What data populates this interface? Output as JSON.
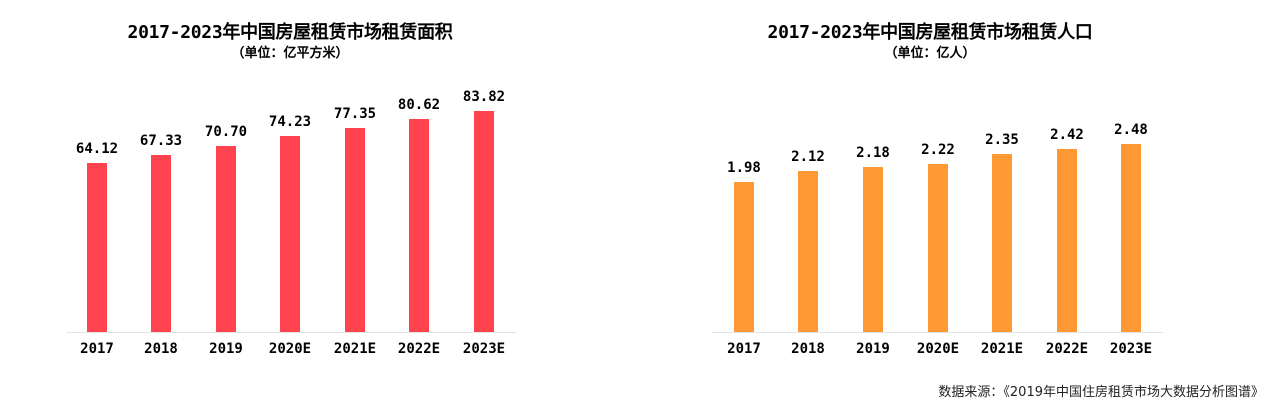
{
  "charts": [
    {
      "title": "2017-2023年中国房屋租赁市场租赁面积",
      "subtitle": "（单位：亿平方米）",
      "color": "#ff444f",
      "value_labels": [
        "64.12",
        "67.33",
        "70.70",
        "74.23",
        "77.35",
        "80.62",
        "83.82"
      ],
      "categories": [
        "2017",
        "2018",
        "2019",
        "2020E",
        "2021E",
        "2022E",
        "2023E"
      ]
    },
    {
      "title": "2017-2023年中国房屋租赁市场租赁人口",
      "subtitle": "（单位：亿人）",
      "color": "#ff9933",
      "value_labels": [
        "1.98",
        "2.12",
        "2.18",
        "2.22",
        "2.35",
        "2.42",
        "2.48"
      ],
      "categories": [
        "2017",
        "2018",
        "2019",
        "2020E",
        "2021E",
        "2022E",
        "2023E"
      ]
    }
  ],
  "source": "数据来源：《2019年中国住房租赁市场大数据分析图谱》",
  "chart_data": [
    {
      "type": "bar",
      "title": "2017-2023年中国房屋租赁市场租赁面积",
      "subtitle": "（单位：亿平方米）",
      "categories": [
        "2017",
        "2018",
        "2019",
        "2020E",
        "2021E",
        "2022E",
        "2023E"
      ],
      "values": [
        64.12,
        67.33,
        70.7,
        74.23,
        77.35,
        80.62,
        83.82
      ],
      "xlabel": "",
      "ylabel": "亿平方米",
      "grid": false,
      "legend": "none",
      "color": "#ff444f"
    },
    {
      "type": "bar",
      "title": "2017-2023年中国房屋租赁市场租赁人口",
      "subtitle": "（单位：亿人）",
      "categories": [
        "2017",
        "2018",
        "2019",
        "2020E",
        "2021E",
        "2022E",
        "2023E"
      ],
      "values": [
        1.98,
        2.12,
        2.18,
        2.22,
        2.35,
        2.42,
        2.48
      ],
      "xlabel": "",
      "ylabel": "亿人",
      "grid": false,
      "legend": "none",
      "color": "#ff9933"
    }
  ]
}
